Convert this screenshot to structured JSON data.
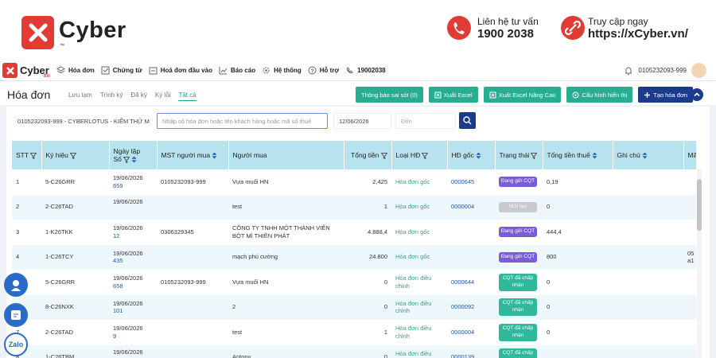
{
  "banner": {
    "brand": "Cyber",
    "trademark": "™",
    "contact_label": "Liên hệ tư vấn",
    "contact_phone": "1900 2038",
    "site_label": "Truy cập ngay",
    "site_url": "https://xCyber.vn/"
  },
  "nav": {
    "brand": "Cyber",
    "brand_sub": "Bill",
    "menu": [
      "Hóa đơn",
      "Chứng từ",
      "Hoá đơn đầu vào",
      "Báo cáo",
      "Hệ thống",
      "Hỗ trợ"
    ],
    "hotline": "19002038",
    "account": "0105232093-999"
  },
  "toolbar": {
    "title": "Hóa đơn",
    "tabs": [
      "Lưu tạm",
      "Trình ký",
      "Đã ký",
      "Ký lỗi",
      "Tất cả"
    ],
    "active_tab": 4,
    "buttons": [
      "Thông báo sai sót (0)",
      "Xuất Excel",
      "Xuất Excel Nâng Cao",
      "Cấu hình hiển thị",
      "Tạo hóa đơn"
    ]
  },
  "filters": {
    "company": "0105232093-999 - CYBERLOTUS - KIỂM THỬ M",
    "search_placeholder": "Nhập số hóa đơn hoặc tên khách hàng hoặc mã số thuế",
    "from_date": "12/06/2026",
    "to_placeholder": "Đến"
  },
  "table": {
    "columns": [
      "STT",
      "Ký hiệu",
      "Ngày lập",
      "Số",
      "MST người mua",
      "Người mua",
      "Tổng tiền",
      "Loại HĐ",
      "HĐ gốc",
      "Trạng thái",
      "Tổng tiền thuế",
      "Ghi chú",
      "Mã"
    ],
    "rows": [
      {
        "stt": "1",
        "symbol": "5-C26GRR",
        "date": "19/06/2026",
        "no": "659",
        "mst": "0105232093-999",
        "buyer": "Vựa muối HN",
        "total": "2,425",
        "type": "Hóa đơn gốc",
        "original": "0000645",
        "status": "Đang gửi CQT",
        "status_color": "#7a5bd8",
        "tax": "0,19"
      },
      {
        "stt": "2",
        "symbol": "2-C26TAD",
        "date": "19/06/2026",
        "buyer": "test",
        "total": "1",
        "type": "Hóa đơn gốc",
        "original": "0000004",
        "status": "Mới tạo",
        "status_color": "#c9c9cc",
        "tax": "0"
      },
      {
        "stt": "3",
        "symbol": "1-K26TKK",
        "date": "19/06/2026",
        "no": "12",
        "mst": "0306329345",
        "buyer": "CÔNG TY TNHH MỘT THÀNH VIÊN BỘT MÌ THIÊN PHÁT",
        "total": "4.888,4",
        "type": "Hóa đơn gốc",
        "status": "Đang gửi CQT",
        "status_color": "#7a5bd8",
        "tax": "444,4"
      },
      {
        "stt": "4",
        "symbol": "1-C26TCY",
        "date": "19/06/2026",
        "no": "435",
        "buyer": "mạch phú cường",
        "total": "24.800",
        "type": "Hóa đơn gốc",
        "status": "Đang gửi CQT",
        "status_color": "#7a5bd8",
        "tax": "800",
        "code": "05 a1"
      },
      {
        "stt": "5",
        "symbol": "5-C26GRR",
        "date": "19/06/2026",
        "no": "658",
        "mst": "0105232093-999",
        "buyer": "Vựa muối HN",
        "total": "0",
        "type": "Hóa đơn điều chỉnh",
        "original": "0000644",
        "status": "CQT đã chấp nhận",
        "status_color": "#2fb89a",
        "tax": "0"
      },
      {
        "stt": "6",
        "symbol": "8-C26NXK",
        "date": "19/06/2026",
        "no": "101",
        "buyer": "2",
        "total": "0",
        "type": "Hóa đơn điều chỉnh",
        "original": "0000092",
        "status": "CQT đã chấp nhận",
        "status_color": "#2fb89a",
        "tax": "0"
      },
      {
        "stt": "7",
        "symbol": "2-C26TAD",
        "date": "19/06/2026",
        "no": "9",
        "buyer": "test",
        "total": "1",
        "type": "Hóa đơn điều chỉnh",
        "original": "0000004",
        "status": "CQT đã chấp nhận",
        "status_color": "#2fb89a",
        "tax": "0"
      },
      {
        "stt": "8",
        "symbol": "1-C26TBM",
        "date": "19/06/2026",
        "buyer": "Antony",
        "total": "0",
        "type": "Hóa đơn điều chỉnh",
        "original": "0000139",
        "status": "CQT đã chấp nhận",
        "status_color": "#2fb89a"
      }
    ]
  },
  "side": {
    "zalo": "Zalo"
  }
}
